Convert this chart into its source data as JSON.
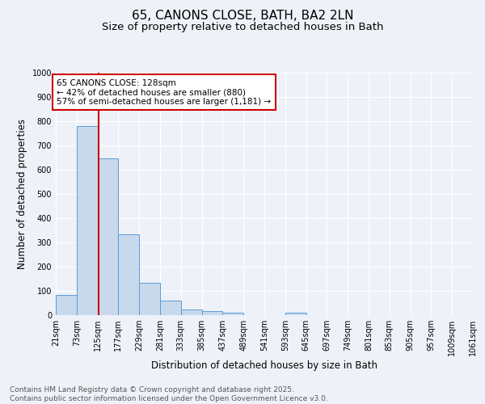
{
  "title_line1": "65, CANONS CLOSE, BATH, BA2 2LN",
  "title_line2": "Size of property relative to detached houses in Bath",
  "xlabel": "Distribution of detached houses by size in Bath",
  "ylabel": "Number of detached properties",
  "bar_edges": [
    21,
    73,
    125,
    177,
    229,
    281,
    333,
    385,
    437,
    489,
    541,
    593,
    645,
    697,
    749,
    801,
    853,
    905,
    957,
    1009,
    1061
  ],
  "bar_heights": [
    85,
    780,
    648,
    335,
    135,
    60,
    22,
    18,
    10,
    0,
    0,
    10,
    0,
    0,
    0,
    0,
    0,
    0,
    0,
    0
  ],
  "bar_color": "#c9d9ec",
  "bar_edge_color": "#5b9bd5",
  "vline_color": "#cc0000",
  "vline_x": 128,
  "annotation_text": "65 CANONS CLOSE: 128sqm\n← 42% of detached houses are smaller (880)\n57% of semi-detached houses are larger (1,181) →",
  "annotation_box_color": "#ffffff",
  "annotation_border_color": "#cc0000",
  "ylim": [
    0,
    1000
  ],
  "yticks": [
    0,
    100,
    200,
    300,
    400,
    500,
    600,
    700,
    800,
    900,
    1000
  ],
  "tick_labels": [
    "21sqm",
    "73sqm",
    "125sqm",
    "177sqm",
    "229sqm",
    "281sqm",
    "333sqm",
    "385sqm",
    "437sqm",
    "489sqm",
    "541sqm",
    "593sqm",
    "645sqm",
    "697sqm",
    "749sqm",
    "801sqm",
    "853sqm",
    "905sqm",
    "957sqm",
    "1009sqm",
    "1061sqm"
  ],
  "footer_text": "Contains HM Land Registry data © Crown copyright and database right 2025.\nContains public sector information licensed under the Open Government Licence v3.0.",
  "background_color": "#eef2f8",
  "grid_color": "#ffffff",
  "title_fontsize": 11,
  "subtitle_fontsize": 9.5,
  "axis_label_fontsize": 8.5,
  "tick_fontsize": 7,
  "footer_fontsize": 6.5,
  "annot_fontsize": 7.5
}
